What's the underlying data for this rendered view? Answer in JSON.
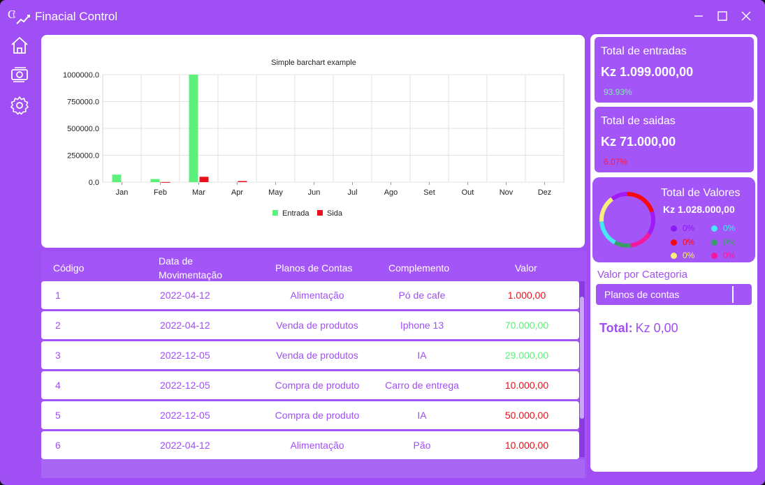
{
  "app": {
    "title": "Finacial Control"
  },
  "colors": {
    "accent": "#a04ff5",
    "entrada": "#5df07a",
    "saida": "#e8101a"
  },
  "chart_data": {
    "type": "bar",
    "title": "Simple barchart example",
    "categories": [
      "Jan",
      "Feb",
      "Mar",
      "Apr",
      "May",
      "Jun",
      "Jul",
      "Ago",
      "Set",
      "Out",
      "Nov",
      "Dez"
    ],
    "series": [
      {
        "name": "Entrada",
        "values": [
          70000,
          29000,
          1000000,
          0,
          0,
          0,
          0,
          0,
          0,
          0,
          0,
          0
        ]
      },
      {
        "name": "Sida",
        "values": [
          0,
          1000,
          50000,
          10000,
          0,
          0,
          0,
          0,
          0,
          0,
          0,
          0
        ]
      }
    ],
    "yticks": [
      "0.0",
      "250000.0",
      "500000.0",
      "750000.0",
      "1000000.0"
    ],
    "ylim": [
      0,
      1000000
    ],
    "grid": true,
    "legend": "bottom"
  },
  "table": {
    "headers": {
      "codigo": "Código",
      "data_l1": "Data de",
      "data_l2": "Movimentação",
      "planos": "Planos de Contas",
      "complemento": "Complemento",
      "valor": "Valor"
    },
    "rows": [
      {
        "codigo": "1",
        "data": "2022-04-12",
        "plano": "Alimentação",
        "complemento": "Pó de cafe",
        "valor": "1.000,00",
        "tipo": "saida"
      },
      {
        "codigo": "2",
        "data": "2022-04-12",
        "plano": "Venda de produtos",
        "complemento": "Iphone 13",
        "valor": "70.000,00",
        "tipo": "entrada"
      },
      {
        "codigo": "3",
        "data": "2022-12-05",
        "plano": "Venda de produtos",
        "complemento": "IA",
        "valor": "29.000,00",
        "tipo": "entrada"
      },
      {
        "codigo": "4",
        "data": "2022-12-05",
        "plano": "Compra de produto",
        "complemento": "Carro de entrega",
        "valor": "10.000,00",
        "tipo": "saida"
      },
      {
        "codigo": "5",
        "data": "2022-12-05",
        "plano": "Compra de produto",
        "complemento": "IA",
        "valor": "50.000,00",
        "tipo": "saida"
      },
      {
        "codigo": "6",
        "data": "2022-04-12",
        "plano": "Alimentação",
        "complemento": "Pão",
        "valor": "10.000,00",
        "tipo": "saida"
      }
    ]
  },
  "summary": {
    "entradas": {
      "label": "Total de entradas",
      "amount": "Kz 1.099.000,00",
      "pct": "93.93%",
      "pct_color": "#7cf0a6"
    },
    "saidas": {
      "label": "Total de saidas",
      "amount": "Kz 71.000,00",
      "pct": "6.07%",
      "pct_color": "#ff1a3c"
    }
  },
  "valores": {
    "title": "Total de Valores",
    "amount": "Kz 1.028.000,00",
    "legend": [
      {
        "color": "#8b18f5",
        "pct": "0%"
      },
      {
        "color": "#47e8f5",
        "pct": "0%"
      },
      {
        "color": "#f50a14",
        "pct": "0%"
      },
      {
        "color": "#3c9b6c",
        "pct": "0%"
      },
      {
        "color": "#f5f07a",
        "pct": "0%"
      },
      {
        "color": "#f5179c",
        "pct": "0%"
      }
    ],
    "donut_segments": [
      {
        "color": "#f50a14",
        "value": 20
      },
      {
        "color": "#a01af5",
        "value": 14
      },
      {
        "color": "#f5179c",
        "value": 14
      },
      {
        "color": "#3c9b6c",
        "value": 10
      },
      {
        "color": "#47e8f5",
        "value": 16
      },
      {
        "color": "#f5f07a",
        "value": 16
      },
      {
        "color": "#a01af5",
        "value": 10
      }
    ]
  },
  "categoria": {
    "title": "Valor por Categoria",
    "select_value": "Planos de contas",
    "total_label": "Total:",
    "total_value": "Kz 0,00"
  }
}
